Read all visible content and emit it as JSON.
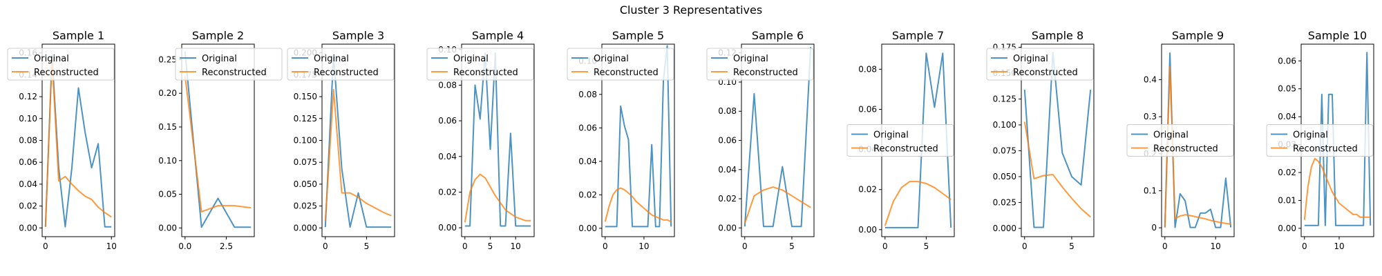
{
  "figure": {
    "title": "Cluster 3 Representatives"
  },
  "legend": {
    "original": "Original",
    "reconstructed": "Reconstructed"
  },
  "colors": {
    "original": "#1f77b4",
    "reconstructed": "#ff7f0e"
  },
  "chart_data": [
    {
      "type": "line",
      "title": "Sample 1",
      "xlim": [
        -0.5,
        10.5
      ],
      "ylim": [
        -0.008,
        0.168
      ],
      "xticks": [
        0,
        10
      ],
      "yticks": [
        0.0,
        0.02,
        0.04,
        0.06,
        0.08,
        0.1,
        0.12,
        0.14,
        0.16
      ],
      "ytick_labels": [
        "0.00",
        "0.02",
        "0.04",
        "0.06",
        "0.08",
        "0.10",
        "0.12",
        "0.14",
        "0.16"
      ],
      "xtick_labels": [
        "0",
        "10"
      ],
      "legend_position": "upper left",
      "series": [
        {
          "name": "Original",
          "x": [
            0,
            1,
            2,
            3,
            4,
            5,
            6,
            7,
            8,
            9,
            10
          ],
          "y": [
            0.001,
            0.158,
            0.055,
            0.001,
            0.055,
            0.128,
            0.088,
            0.055,
            0.077,
            0.001,
            0.001
          ]
        },
        {
          "name": "Reconstructed",
          "x": [
            0,
            1,
            2,
            3,
            4,
            5,
            6,
            7,
            8,
            9,
            10
          ],
          "y": [
            0.001,
            0.155,
            0.043,
            0.047,
            0.04,
            0.034,
            0.029,
            0.026,
            0.019,
            0.014,
            0.01
          ]
        }
      ]
    },
    {
      "type": "line",
      "title": "Sample 2",
      "xlim": [
        -0.2,
        4.2
      ],
      "ylim": [
        -0.013,
        0.273
      ],
      "xticks": [
        0,
        2.5
      ],
      "yticks": [
        0.0,
        0.05,
        0.1,
        0.15,
        0.2,
        0.25
      ],
      "ytick_labels": [
        "0.00",
        "0.05",
        "0.10",
        "0.15",
        "0.20",
        "0.25"
      ],
      "xtick_labels": [
        "0.0",
        "2.5"
      ],
      "legend_position": "upper right",
      "series": [
        {
          "name": "Original",
          "x": [
            0,
            1,
            2,
            3,
            4
          ],
          "y": [
            0.262,
            0.001,
            0.044,
            0.001,
            0.001
          ]
        },
        {
          "name": "Reconstructed",
          "x": [
            0,
            1,
            2,
            3,
            4
          ],
          "y": [
            0.226,
            0.024,
            0.033,
            0.033,
            0.03
          ]
        }
      ]
    },
    {
      "type": "line",
      "title": "Sample 3",
      "xlim": [
        -0.4,
        8.4
      ],
      "ylim": [
        -0.01,
        0.21
      ],
      "xticks": [
        0,
        5
      ],
      "yticks": [
        0.0,
        0.025,
        0.05,
        0.075,
        0.1,
        0.125,
        0.15,
        0.175,
        0.2
      ],
      "ytick_labels": [
        "0.000",
        "0.025",
        "0.050",
        "0.075",
        "0.100",
        "0.125",
        "0.150",
        "0.175",
        "0.200"
      ],
      "xtick_labels": [
        "0",
        "5"
      ],
      "legend_position": "upper left",
      "series": [
        {
          "name": "Original",
          "x": [
            0,
            1,
            2,
            3,
            4,
            5,
            6,
            7,
            8
          ],
          "y": [
            0.001,
            0.198,
            0.068,
            0.001,
            0.04,
            0.001,
            0.001,
            0.001,
            0.001
          ]
        },
        {
          "name": "Reconstructed",
          "x": [
            0,
            1,
            2,
            3,
            4,
            5,
            6,
            7,
            8
          ],
          "y": [
            0.008,
            0.158,
            0.04,
            0.04,
            0.035,
            0.028,
            0.023,
            0.018,
            0.014
          ]
        }
      ]
    },
    {
      "type": "line",
      "title": "Sample 4",
      "xlim": [
        -0.65,
        13.65
      ],
      "ylim": [
        -0.005,
        0.103
      ],
      "xticks": [
        0,
        5,
        10
      ],
      "yticks": [
        0.0,
        0.02,
        0.04,
        0.06,
        0.08,
        0.1
      ],
      "ytick_labels": [
        "0.00",
        "0.02",
        "0.04",
        "0.06",
        "0.08",
        "0.10"
      ],
      "xtick_labels": [
        "0",
        "5",
        "10"
      ],
      "legend_position": "upper left",
      "series": [
        {
          "name": "Original",
          "x": [
            0,
            1,
            2,
            3,
            4,
            5,
            6,
            7,
            8,
            9,
            10,
            11,
            12,
            13
          ],
          "y": [
            0.001,
            0.001,
            0.08,
            0.061,
            0.098,
            0.044,
            0.098,
            0.001,
            0.001,
            0.053,
            0.001,
            0.001,
            0.001,
            0.001
          ]
        },
        {
          "name": "Reconstructed",
          "x": [
            0,
            1,
            2,
            3,
            4,
            5,
            6,
            7,
            8,
            9,
            10,
            11,
            12,
            13
          ],
          "y": [
            0.003,
            0.02,
            0.027,
            0.03,
            0.028,
            0.023,
            0.018,
            0.014,
            0.01,
            0.008,
            0.006,
            0.005,
            0.004,
            0.004
          ]
        }
      ]
    },
    {
      "type": "line",
      "title": "Sample 5",
      "xlim": [
        -0.85,
        17.85
      ],
      "ylim": [
        -0.005,
        0.11
      ],
      "xticks": [
        0,
        10
      ],
      "yticks": [
        0.0,
        0.02,
        0.04,
        0.06,
        0.08,
        0.1
      ],
      "ytick_labels": [
        "0.00",
        "0.02",
        "0.04",
        "0.06",
        "0.08",
        "0.10"
      ],
      "xtick_labels": [
        "0",
        "10"
      ],
      "legend_position": "upper left",
      "series": [
        {
          "name": "Original",
          "x": [
            0,
            1,
            2,
            3,
            4,
            5,
            6,
            7,
            8,
            9,
            10,
            11,
            12,
            13,
            14,
            15,
            16,
            17
          ],
          "y": [
            0.001,
            0.001,
            0.001,
            0.001,
            0.073,
            0.061,
            0.053,
            0.001,
            0.001,
            0.001,
            0.001,
            0.001,
            0.05,
            0.001,
            0.001,
            0.088,
            0.109,
            0.001
          ]
        },
        {
          "name": "Reconstructed",
          "x": [
            0,
            1,
            2,
            3,
            4,
            5,
            6,
            7,
            8,
            9,
            10,
            11,
            12,
            13,
            14,
            15,
            16,
            17
          ],
          "y": [
            0.004,
            0.013,
            0.02,
            0.023,
            0.024,
            0.023,
            0.021,
            0.019,
            0.016,
            0.014,
            0.012,
            0.01,
            0.008,
            0.007,
            0.006,
            0.005,
            0.005,
            0.004
          ]
        }
      ]
    },
    {
      "type": "line",
      "title": "Sample 6",
      "xlim": [
        -0.35,
        7.35
      ],
      "ylim": [
        -0.006,
        0.126
      ],
      "xticks": [
        0,
        5
      ],
      "yticks": [
        0.0,
        0.02,
        0.04,
        0.06,
        0.08,
        0.1,
        0.12
      ],
      "ytick_labels": [
        "0.00",
        "0.02",
        "0.04",
        "0.06",
        "0.08",
        "0.10",
        "0.12"
      ],
      "xtick_labels": [
        "0",
        "5"
      ],
      "legend_position": "upper left",
      "series": [
        {
          "name": "Original",
          "x": [
            0,
            1,
            2,
            3,
            4,
            5,
            6,
            7
          ],
          "y": [
            0.001,
            0.092,
            0.001,
            0.001,
            0.042,
            0.001,
            0.001,
            0.124
          ]
        },
        {
          "name": "Reconstructed",
          "x": [
            0,
            1,
            2,
            3,
            4,
            5,
            6,
            7
          ],
          "y": [
            0.003,
            0.022,
            0.026,
            0.028,
            0.026,
            0.022,
            0.018,
            0.014
          ]
        }
      ]
    },
    {
      "type": "line",
      "title": "Sample 7",
      "xlim": [
        -0.4,
        8.4
      ],
      "ylim": [
        -0.0035,
        0.0925
      ],
      "xticks": [
        0,
        5
      ],
      "yticks": [
        0.0,
        0.02,
        0.04,
        0.06,
        0.08
      ],
      "ytick_labels": [
        "0.00",
        "0.02",
        "0.04",
        "0.06",
        "0.08"
      ],
      "xtick_labels": [
        "0",
        "5"
      ],
      "legend_position": "center left",
      "series": [
        {
          "name": "Original",
          "x": [
            0,
            1,
            2,
            3,
            4,
            5,
            6,
            7,
            8
          ],
          "y": [
            0.001,
            0.001,
            0.001,
            0.001,
            0.001,
            0.088,
            0.061,
            0.088,
            0.001
          ]
        },
        {
          "name": "Reconstructed",
          "x": [
            0,
            1,
            2,
            3,
            4,
            5,
            6,
            7,
            8
          ],
          "y": [
            0.002,
            0.014,
            0.021,
            0.024,
            0.024,
            0.023,
            0.021,
            0.018,
            0.015
          ]
        }
      ]
    },
    {
      "type": "line",
      "title": "Sample 8",
      "xlim": [
        -0.35,
        7.35
      ],
      "ylim": [
        -0.008,
        0.178
      ],
      "xticks": [
        0,
        5
      ],
      "yticks": [
        0.0,
        0.025,
        0.05,
        0.075,
        0.1,
        0.125,
        0.15,
        0.175
      ],
      "ytick_labels": [
        "0.000",
        "0.025",
        "0.050",
        "0.075",
        "0.100",
        "0.125",
        "0.150",
        "0.175"
      ],
      "xtick_labels": [
        "0",
        "5"
      ],
      "legend_position": "upper left",
      "series": [
        {
          "name": "Original",
          "x": [
            0,
            1,
            2,
            3,
            4,
            5,
            6,
            7
          ],
          "y": [
            0.134,
            0.001,
            0.001,
            0.17,
            0.073,
            0.05,
            0.042,
            0.134
          ]
        },
        {
          "name": "Reconstructed",
          "x": [
            0,
            1,
            2,
            3,
            4,
            5,
            6,
            7
          ],
          "y": [
            0.103,
            0.048,
            0.051,
            0.052,
            0.04,
            0.029,
            0.019,
            0.011
          ]
        }
      ]
    },
    {
      "type": "line",
      "title": "Sample 9",
      "xlim": [
        -0.65,
        13.65
      ],
      "ylim": [
        -0.024,
        0.496
      ],
      "xticks": [
        0,
        10
      ],
      "yticks": [
        0.0,
        0.1,
        0.2,
        0.3,
        0.4
      ],
      "ytick_labels": [
        "0",
        "0.1",
        "0.2",
        "0.3",
        "0.4"
      ],
      "xtick_labels": [
        "0",
        "10"
      ],
      "legend_position": "center left",
      "series": [
        {
          "name": "Original",
          "x": [
            0,
            1,
            2,
            3,
            4,
            5,
            6,
            7,
            8,
            9,
            10,
            11,
            12,
            13
          ],
          "y": [
            0.001,
            0.472,
            0.001,
            0.092,
            0.073,
            0.001,
            0.001,
            0.04,
            0.04,
            0.05,
            0.001,
            0.001,
            0.134,
            0.001
          ]
        },
        {
          "name": "Reconstructed",
          "x": [
            0,
            1,
            2,
            3,
            4,
            5,
            6,
            7,
            8,
            9,
            10,
            11,
            12,
            13
          ],
          "y": [
            0.001,
            0.435,
            0.025,
            0.032,
            0.035,
            0.033,
            0.03,
            0.027,
            0.024,
            0.02,
            0.017,
            0.014,
            0.012,
            0.01
          ]
        }
      ]
    },
    {
      "type": "line",
      "title": "Sample 10",
      "xlim": [
        -0.95,
        19.95
      ],
      "ylim": [
        -0.003,
        0.066
      ],
      "xticks": [
        0,
        10
      ],
      "yticks": [
        0.0,
        0.01,
        0.02,
        0.03,
        0.04,
        0.05,
        0.06
      ],
      "ytick_labels": [
        "0.00",
        "0.01",
        "0.02",
        "0.03",
        "0.04",
        "0.05",
        "0.06"
      ],
      "xtick_labels": [
        "0",
        "10"
      ],
      "legend_position": "center left",
      "series": [
        {
          "name": "Original",
          "x": [
            0,
            1,
            2,
            3,
            4,
            5,
            6,
            7,
            8,
            9,
            10,
            11,
            12,
            13,
            14,
            15,
            16,
            17,
            18,
            19
          ],
          "y": [
            0.001,
            0.001,
            0.001,
            0.001,
            0.001,
            0.048,
            0.001,
            0.048,
            0.048,
            0.001,
            0.001,
            0.001,
            0.001,
            0.001,
            0.001,
            0.001,
            0.001,
            0.001,
            0.063,
            0.001
          ]
        },
        {
          "name": "Reconstructed",
          "x": [
            0,
            1,
            2,
            3,
            4,
            5,
            6,
            7,
            8,
            9,
            10,
            11,
            12,
            13,
            14,
            15,
            16,
            17,
            18,
            19
          ],
          "y": [
            0.003,
            0.015,
            0.022,
            0.025,
            0.024,
            0.022,
            0.019,
            0.016,
            0.013,
            0.011,
            0.009,
            0.008,
            0.007,
            0.006,
            0.005,
            0.005,
            0.004,
            0.004,
            0.004,
            0.004
          ]
        }
      ]
    }
  ]
}
